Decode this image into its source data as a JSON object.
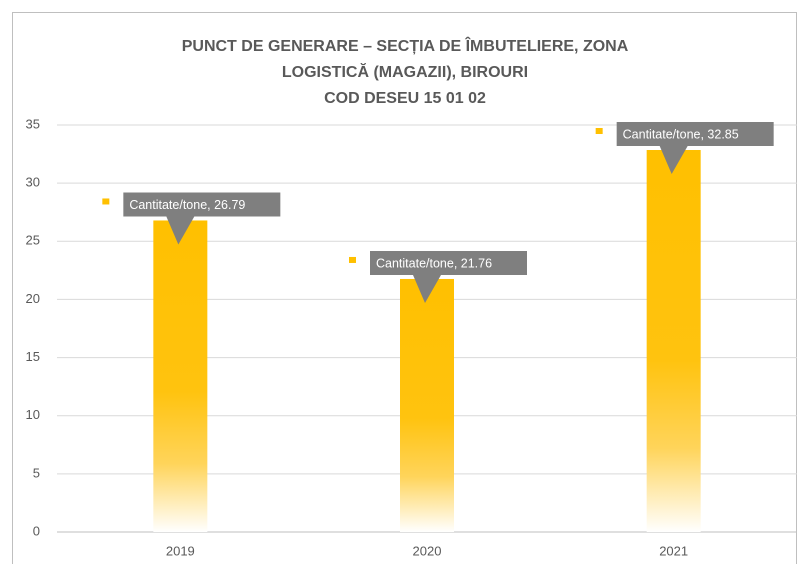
{
  "chart_data": {
    "type": "bar",
    "title": [
      "PUNCT DE GENERARE – SECȚIA DE ÎMBUTELIERE, ZONA",
      "LOGISTICĂ (MAGAZII), BIROURI",
      "COD DESEU 15 01 02"
    ],
    "categories": [
      "2019",
      "2020",
      "2021"
    ],
    "series": [
      {
        "name": "Cantitate/tone",
        "color": "#ffc000",
        "values": [
          26.79,
          21.76,
          32.85
        ],
        "value_labels": [
          "Cantitate/tone, 26.79",
          "Cantitate/tone, 21.76",
          "Cantitate/tone, 32.85"
        ]
      }
    ],
    "ylim": [
      0,
      35
    ],
    "yticks": [
      0,
      5,
      10,
      15,
      20,
      25,
      30,
      35
    ],
    "grid": true
  }
}
